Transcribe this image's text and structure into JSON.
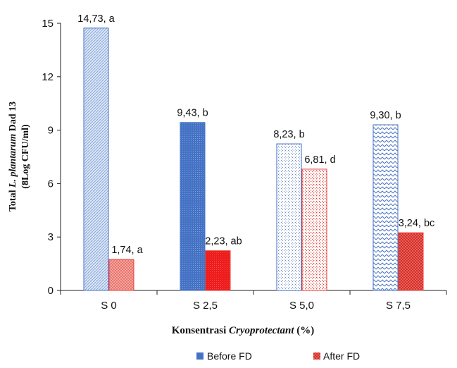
{
  "chart_data": {
    "type": "bar",
    "categories": [
      "S 0",
      "S 2,5",
      "S 5,0",
      "S 7,5"
    ],
    "series": [
      {
        "name": "Before FD",
        "values": [
          14.73,
          9.43,
          8.23,
          9.3
        ],
        "labels": [
          "14,73, a",
          "9,43, b",
          "8,23, b",
          "9,30, b"
        ],
        "patterns": [
          "pat-before-0",
          "pat-before-1",
          "pat-before-2",
          "pat-before-3"
        ],
        "color": "#4472c4"
      },
      {
        "name": "After FD",
        "values": [
          1.74,
          2.23,
          6.81,
          3.24
        ],
        "labels": [
          "1,74, a",
          "2,23, ab",
          "6,81, d",
          "3,24, bc"
        ],
        "patterns": [
          "pat-after-0",
          "pat-after-1",
          "pat-after-2",
          "pat-after-3"
        ],
        "color": "#e8413a"
      }
    ],
    "ylim": [
      0,
      15
    ],
    "yticks": [
      "0",
      "3",
      "6",
      "9",
      "12",
      "15"
    ],
    "ytick_values": [
      0,
      3,
      6,
      9,
      12,
      15
    ],
    "xlabel": {
      "prefix": "Konsentrasi ",
      "italic": "Cryoprotectant",
      "suffix": " (%)"
    },
    "ylabel": {
      "line1_prefix": "Total ",
      "line1_italic": "L. plantarum",
      "line1_suffix": " Dad 13",
      "line2": "(8Log CFU/ml)"
    },
    "legend_position": "bottom",
    "grid": false
  }
}
